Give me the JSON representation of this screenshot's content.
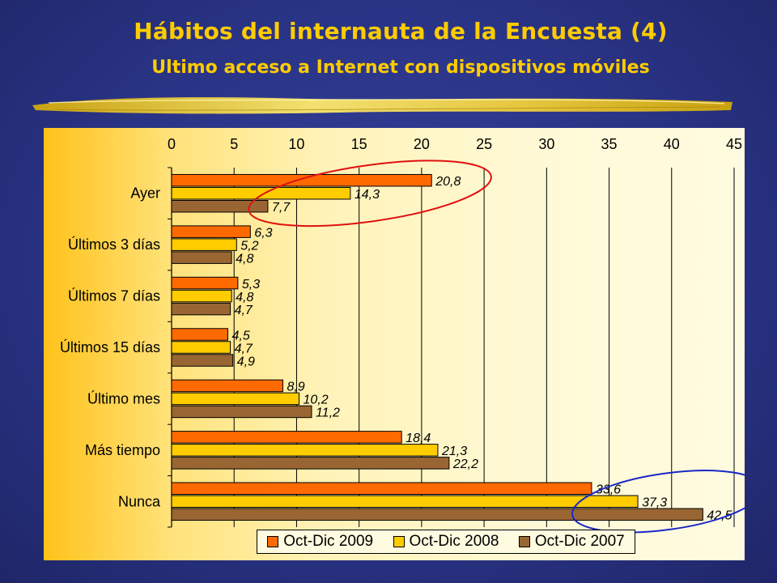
{
  "slide": {
    "title": "Hábitos del internauta de la Encuesta (4)",
    "subtitle": "Ultimo acceso a Internet con dispositivos móviles"
  },
  "colors": {
    "series_2009": "#ff6a00",
    "series_2008": "#ffcc00",
    "series_2007": "#996633",
    "title": "#ffcc00",
    "highlight_red": "#e01010",
    "highlight_blue": "#1a28c8"
  },
  "chart_data": {
    "type": "bar",
    "orientation": "horizontal",
    "categories": [
      "Ayer",
      "Últimos 3 días",
      "Últimos 7 días",
      "Últimos 15 días",
      "Último mes",
      "Más tiempo",
      "Nunca"
    ],
    "series": [
      {
        "name": "Oct-Dic 2009",
        "values": [
          20.8,
          6.3,
          5.3,
          4.5,
          8.9,
          18.4,
          33.6
        ],
        "labels": [
          "20,8",
          "6,3",
          "5,3",
          "4,5",
          "8,9",
          "18,4",
          "33,6"
        ]
      },
      {
        "name": "Oct-Dic 2008",
        "values": [
          14.3,
          5.2,
          4.8,
          4.7,
          10.2,
          21.3,
          37.3
        ],
        "labels": [
          "14,3",
          "5,2",
          "4,8",
          "4,7",
          "10,2",
          "21,3",
          "37,3"
        ]
      },
      {
        "name": "Oct-Dic 2007",
        "values": [
          7.7,
          4.8,
          4.7,
          4.9,
          11.2,
          22.2,
          42.5
        ],
        "labels": [
          "7,7",
          "4,8",
          "4,7",
          "4,9",
          "11,2",
          "22,2",
          "42,5"
        ]
      }
    ],
    "x_ticks": [
      "0",
      "5",
      "10",
      "15",
      "20",
      "25",
      "30",
      "35",
      "40",
      "45"
    ],
    "xlim": [
      0,
      45
    ],
    "axis_position": "top",
    "grid": "vertical",
    "legend_position": "bottom",
    "annotations": [
      {
        "shape": "ellipse",
        "color": "red",
        "around": "Ayer"
      },
      {
        "shape": "ellipse",
        "color": "blue",
        "around": "Nunca"
      }
    ]
  }
}
